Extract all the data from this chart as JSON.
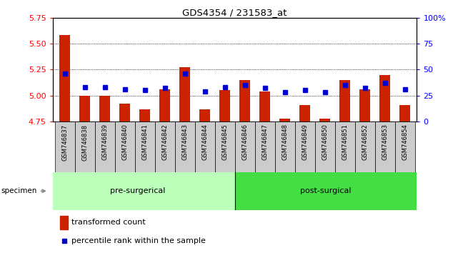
{
  "title": "GDS4354 / 231583_at",
  "specimens": [
    "GSM746837",
    "GSM746838",
    "GSM746839",
    "GSM746840",
    "GSM746841",
    "GSM746842",
    "GSM746843",
    "GSM746844",
    "GSM746845",
    "GSM746846",
    "GSM746847",
    "GSM746848",
    "GSM746849",
    "GSM746850",
    "GSM746851",
    "GSM746852",
    "GSM746853",
    "GSM746854"
  ],
  "transformed_count": [
    5.58,
    5.0,
    5.0,
    4.92,
    4.87,
    5.06,
    5.27,
    4.87,
    5.05,
    5.15,
    5.04,
    4.78,
    4.91,
    4.78,
    5.15,
    5.06,
    5.2,
    4.91
  ],
  "percentile_rank": [
    46,
    33,
    33,
    31,
    30,
    32,
    46,
    29,
    33,
    35,
    32,
    28,
    30,
    28,
    35,
    32,
    37,
    31
  ],
  "baseline": 4.75,
  "ylim_left": [
    4.75,
    5.75
  ],
  "ylim_right": [
    0,
    100
  ],
  "yticks_left": [
    4.75,
    5.0,
    5.25,
    5.5,
    5.75
  ],
  "yticks_right": [
    0,
    25,
    50,
    75,
    100
  ],
  "pre_surgical_count": 9,
  "bar_color": "#cc2200",
  "dot_color": "#0000cc",
  "pre_color": "#bbffbb",
  "post_color": "#44dd44",
  "grid_color": "#000000",
  "bg_plot": "#ffffff",
  "bg_xaxis": "#cccccc",
  "bg_fig": "#ffffff",
  "dotted_yticks": [
    5.0,
    5.25,
    5.5
  ],
  "pre_label": "pre-surgerical",
  "post_label": "post-surgical"
}
